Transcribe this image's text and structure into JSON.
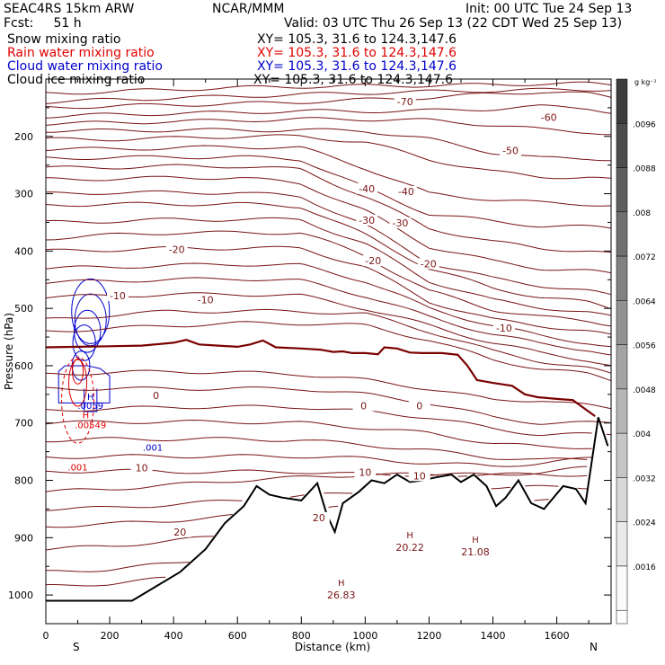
{
  "header": {
    "title_left": "SEAC4RS 15km ARW",
    "title_center": "NCAR/MMM",
    "init": "Init: 00 UTC Tue 24 Sep 13",
    "fcst": "Fcst:     51 h",
    "valid": "Valid: 03 UTC Thu 26 Sep 13 (22 CDT Wed 25 Sep 13)"
  },
  "fields": [
    {
      "label": "Snow mixing ratio",
      "xy": "XY= 105.3, 31.6 to 124.3,147.6",
      "color": "#000000"
    },
    {
      "label": "Rain water mixing ratio",
      "xy": "XY= 105.3, 31.6 to 124.3,147.6",
      "color": "#e00000"
    },
    {
      "label": "Cloud water mixing ratio",
      "xy": "XY= 105.3, 31.6 to 124.3,147.6",
      "color": "#0000cc"
    },
    {
      "label": "Cloud ice mixing ratio",
      "xy": "XY= 105.3, 31.6 to 124.3,147.6",
      "color": "#000000"
    }
  ],
  "chart_data": {
    "type": "contour",
    "xlabel": "Distance (km)",
    "ylabel": "Pressure (hPa)",
    "xlim": [
      0,
      1770
    ],
    "ylim": [
      1050,
      100
    ],
    "x_ticks": [
      0,
      200,
      400,
      600,
      800,
      1000,
      1200,
      1400,
      1600
    ],
    "y_ticks": [
      200,
      300,
      400,
      500,
      600,
      700,
      800,
      900,
      1000
    ],
    "x_endpoints": {
      "left": "S",
      "right": "N"
    },
    "colorbar": {
      "unit": "g kg⁻¹",
      "ticks": [
        ".0096",
        ".0088",
        ".008",
        ".0072",
        ".0064",
        ".0056",
        ".0048",
        ".004",
        ".0032",
        ".0024",
        ".0016"
      ]
    },
    "temperature_color": "#7a1414",
    "zero_isotherm_color": "#7a0000",
    "temperature_labels": [
      {
        "text": "-70",
        "x": 1125,
        "p": 142
      },
      {
        "text": "-60",
        "x": 1575,
        "p": 170
      },
      {
        "text": "-50",
        "x": 1455,
        "p": 228
      },
      {
        "text": "-40",
        "x": 1005,
        "p": 294
      },
      {
        "text": "-40",
        "x": 1128,
        "p": 299
      },
      {
        "text": "-30",
        "x": 1005,
        "p": 349
      },
      {
        "text": "-30",
        "x": 1110,
        "p": 354
      },
      {
        "text": "-20",
        "x": 410,
        "p": 400
      },
      {
        "text": "-20",
        "x": 1025,
        "p": 420
      },
      {
        "text": "-20",
        "x": 1198,
        "p": 425
      },
      {
        "text": "-10",
        "x": 225,
        "p": 481
      },
      {
        "text": "-10",
        "x": 500,
        "p": 488
      },
      {
        "text": "-10",
        "x": 1435,
        "p": 537
      },
      {
        "text": "0",
        "x": 345,
        "p": 655
      },
      {
        "text": "0",
        "x": 995,
        "p": 673
      },
      {
        "text": "0",
        "x": 1170,
        "p": 673
      },
      {
        "text": "10",
        "x": 300,
        "p": 781
      },
      {
        "text": "10",
        "x": 1000,
        "p": 789
      },
      {
        "text": "10",
        "x": 1170,
        "p": 795
      },
      {
        "text": "20",
        "x": 420,
        "p": 893
      },
      {
        "text": "20",
        "x": 855,
        "p": 868
      }
    ],
    "terrain_highs": [
      {
        "label": "H",
        "value": "26.83",
        "x": 925,
        "p": 1003
      },
      {
        "label": "H",
        "value": "20.22",
        "x": 1140,
        "p": 920
      },
      {
        "label": "H",
        "value": "21.08",
        "x": 1345,
        "p": 928
      }
    ],
    "cloud_labels": [
      {
        "text": "H",
        "x": 140,
        "p": 660,
        "color": "#0000cc"
      },
      {
        "text": ".0059",
        "x": 140,
        "p": 675,
        "color": "#0000cc"
      },
      {
        "text": "H",
        "x": 125,
        "p": 692,
        "color": "#e00000"
      },
      {
        "text": ".00549",
        "x": 140,
        "p": 709,
        "color": "#e00000"
      },
      {
        "text": ".001",
        "x": 335,
        "p": 748,
        "color": "#0000cc"
      },
      {
        "text": ".001",
        "x": 100,
        "p": 783,
        "color": "#e00000"
      }
    ]
  }
}
